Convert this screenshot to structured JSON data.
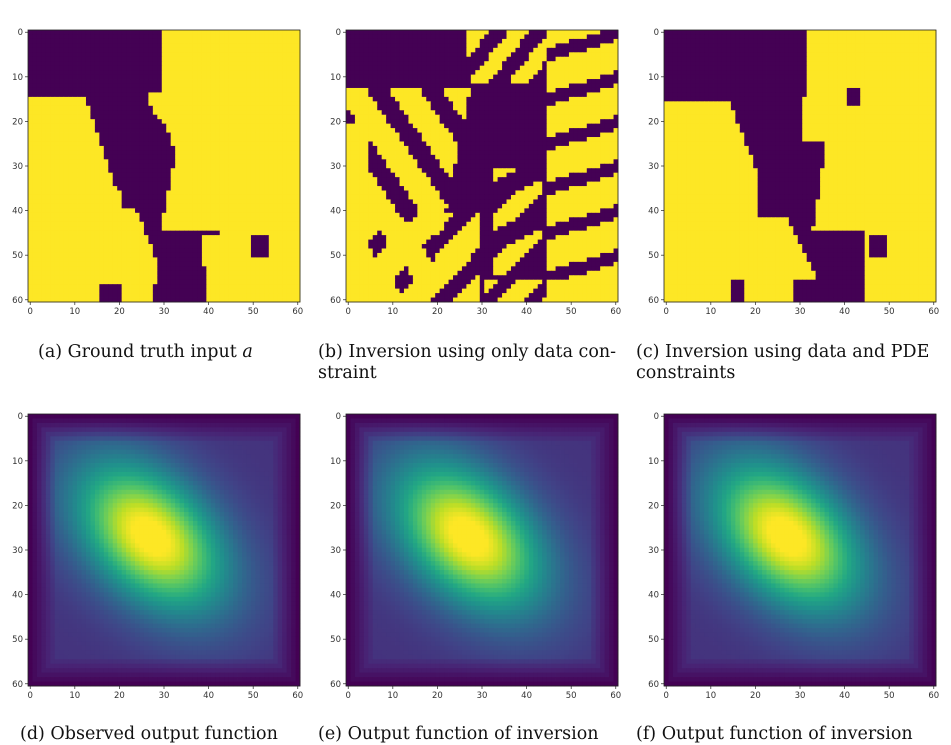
{
  "figure": {
    "panels": [
      {
        "id": "a",
        "kind": "binary",
        "caption": "(a) Ground truth input ",
        "caption_math": "a"
      },
      {
        "id": "b",
        "kind": "binary",
        "caption": "(b) Inversion using only data con-",
        "caption_line2": "straint"
      },
      {
        "id": "c",
        "kind": "binary",
        "caption": "(c) Inversion using data and PDE",
        "caption_line2": "constraints"
      },
      {
        "id": "d",
        "kind": "field",
        "caption": "(d) Observed output function"
      },
      {
        "id": "e",
        "kind": "field",
        "caption": "(e) Output function of inversion"
      },
      {
        "id": "f",
        "kind": "field",
        "caption": "(f) Output function of inversion"
      }
    ],
    "colors": {
      "low": "#440154",
      "high": "#fde725"
    }
  },
  "chart_data": [
    {
      "type": "heatmap",
      "panel": "a",
      "xlim": [
        0,
        60
      ],
      "ylim": [
        60,
        0
      ],
      "xticks": [
        0,
        10,
        20,
        30,
        40,
        50,
        60
      ],
      "yticks": [
        0,
        10,
        20,
        30,
        40,
        50,
        60
      ]
    },
    {
      "type": "heatmap",
      "panel": "b",
      "xlim": [
        0,
        60
      ],
      "ylim": [
        60,
        0
      ],
      "xticks": [
        0,
        10,
        20,
        30,
        40,
        50,
        60
      ],
      "yticks": [
        0,
        10,
        20,
        30,
        40,
        50,
        60
      ]
    },
    {
      "type": "heatmap",
      "panel": "c",
      "xlim": [
        0,
        60
      ],
      "ylim": [
        60,
        0
      ],
      "xticks": [
        0,
        10,
        20,
        30,
        40,
        50,
        60
      ],
      "yticks": [
        0,
        10,
        20,
        30,
        40,
        50,
        60
      ]
    },
    {
      "type": "heatmap",
      "panel": "d",
      "xlim": [
        0,
        60
      ],
      "ylim": [
        60,
        0
      ],
      "xticks": [
        0,
        10,
        20,
        30,
        40,
        50,
        60
      ],
      "yticks": [
        0,
        10,
        20,
        30,
        40,
        50,
        60
      ]
    },
    {
      "type": "heatmap",
      "panel": "e",
      "xlim": [
        0,
        60
      ],
      "ylim": [
        60,
        0
      ],
      "xticks": [
        0,
        10,
        20,
        30,
        40,
        50,
        60
      ],
      "yticks": [
        0,
        10,
        20,
        30,
        40,
        50,
        60
      ]
    },
    {
      "type": "heatmap",
      "panel": "f",
      "xlim": [
        0,
        60
      ],
      "ylim": [
        60,
        0
      ],
      "xticks": [
        0,
        10,
        20,
        30,
        40,
        50,
        60
      ],
      "yticks": [
        0,
        10,
        20,
        30,
        40,
        50,
        60
      ]
    }
  ]
}
